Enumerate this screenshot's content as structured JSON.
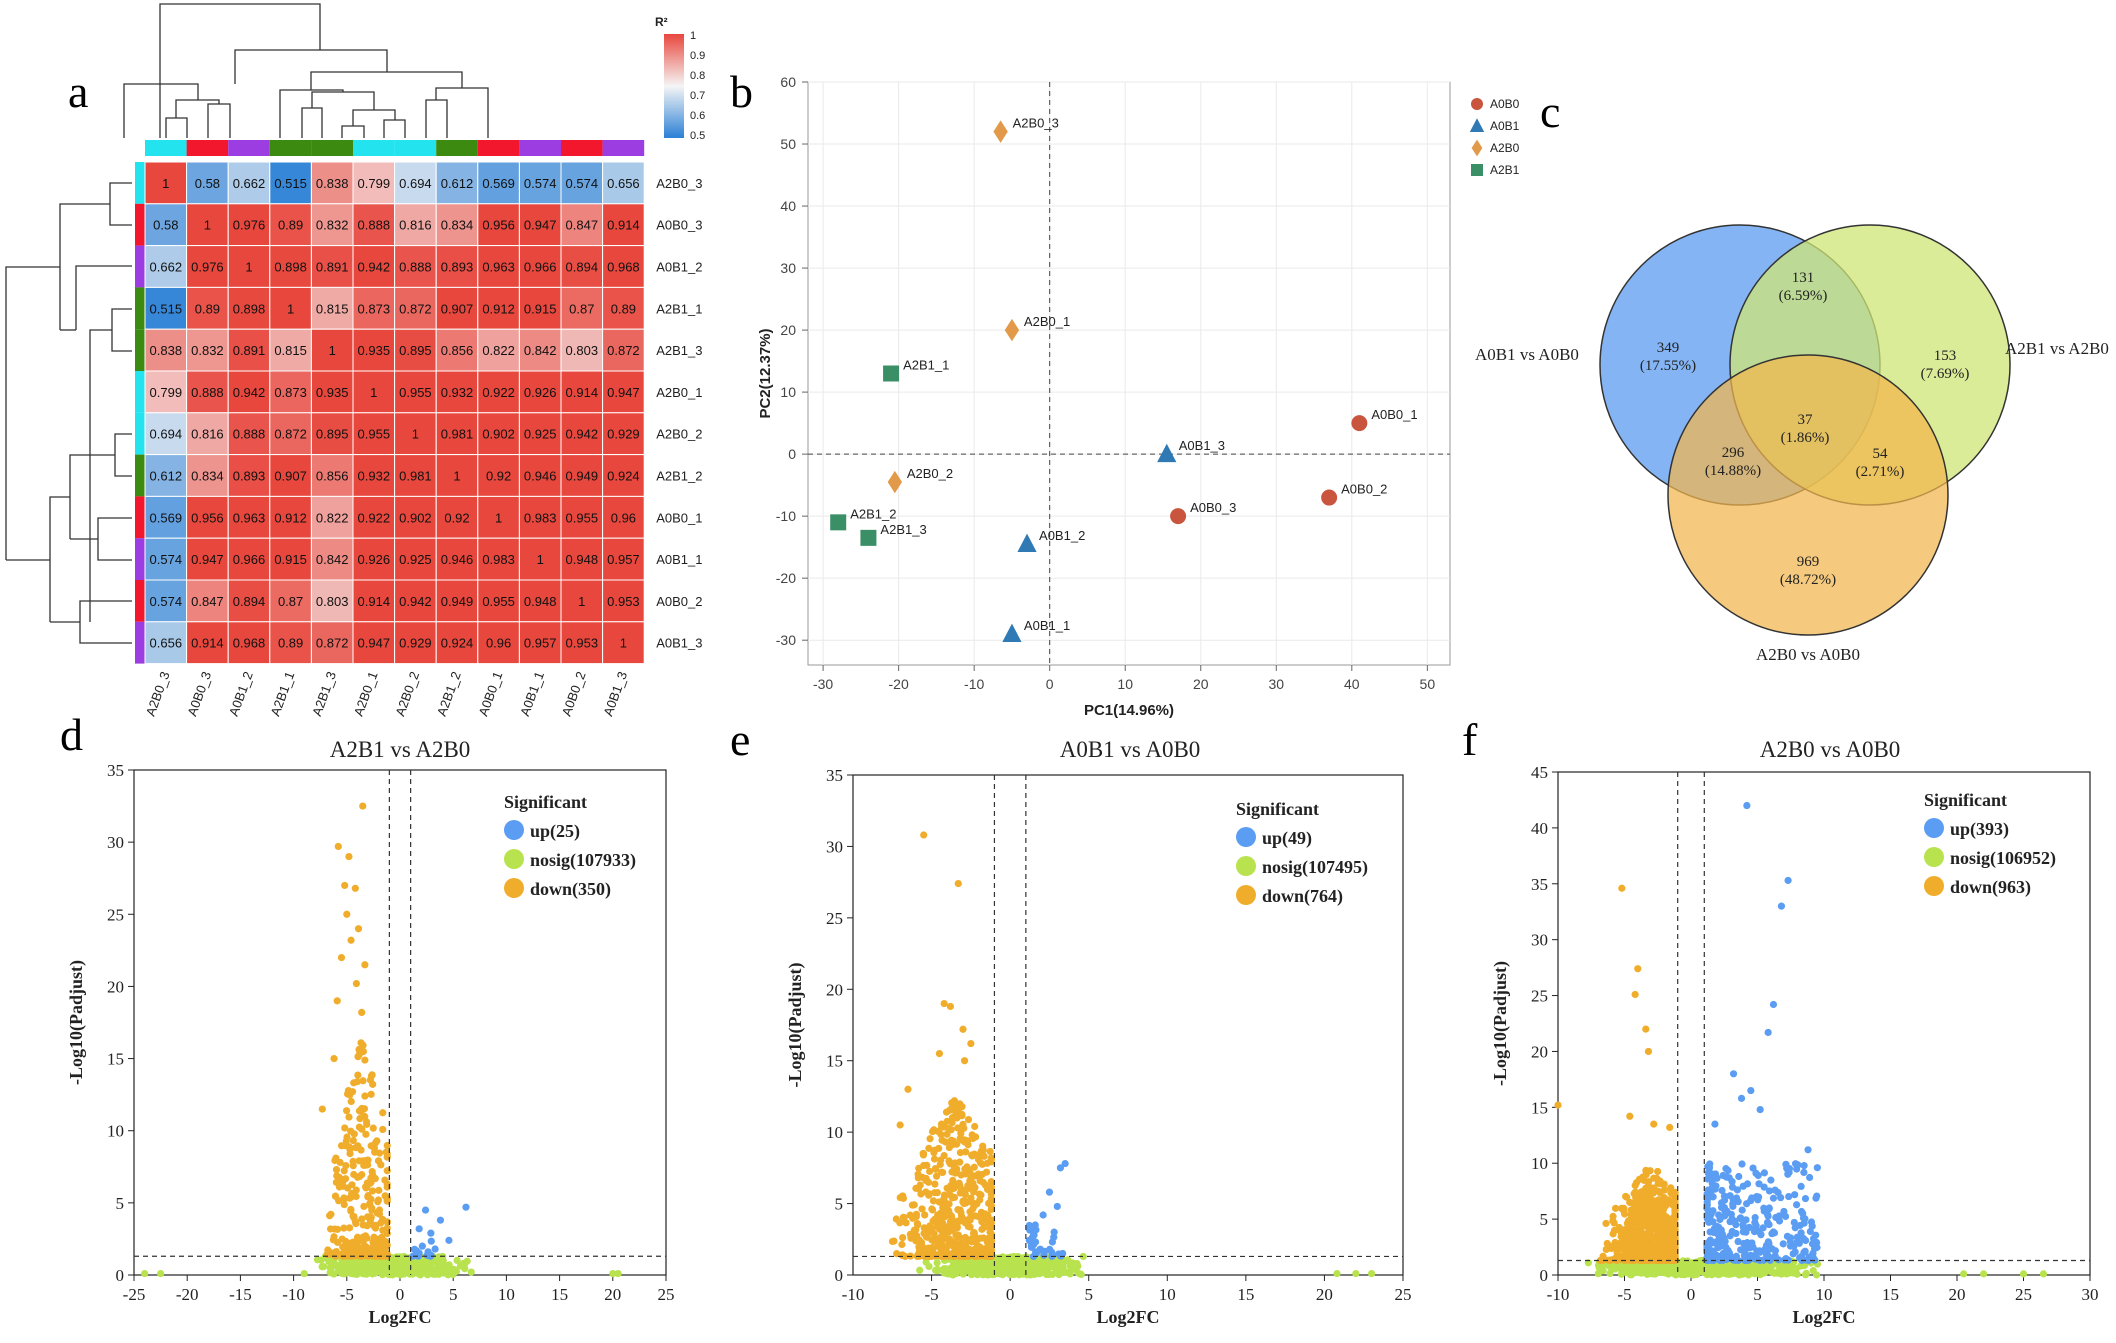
{
  "panel_letters": {
    "a": "a",
    "b": "b",
    "c": "c",
    "d": "d",
    "e": "e",
    "f": "f"
  },
  "colors": {
    "cyan": "#23e3ef",
    "red": "#f2172c",
    "purple": "#9b3de0",
    "green": "#3c8a10",
    "heat_low": "#2b80d6",
    "heat_mid": "#f5f5f5",
    "heat_high": "#e8473d",
    "up": "#5b9df2",
    "nosig": "#b8e34e",
    "down": "#f0ad2c",
    "pca_A0B0": "#c9553e",
    "pca_A0B1": "#2f79b5",
    "pca_A2B0": "#e29a4a",
    "pca_A2B1": "#3b8f66",
    "venn_blue": "#6ea7f2",
    "venn_green": "#cfe676",
    "venn_orange": "#f2b54c"
  },
  "chart_data": [
    {
      "id": "a",
      "type": "heatmap",
      "title": "",
      "legend_title": "R²",
      "legend_ticks": [
        "1",
        "0.9",
        "0.8",
        "0.7",
        "0.6",
        "0.5"
      ],
      "legend_range": [
        0.5,
        1
      ],
      "col_labels": [
        "A2B0_3",
        "A0B0_3",
        "A0B1_2",
        "A2B1_1",
        "A2B1_3",
        "A2B0_1",
        "A2B0_2",
        "A2B1_2",
        "A0B0_1",
        "A0B1_1",
        "A0B0_2",
        "A0B1_3"
      ],
      "row_labels": [
        "A2B0_3",
        "A0B0_3",
        "A0B1_2",
        "A2B1_1",
        "A2B1_3",
        "A2B0_1",
        "A2B0_2",
        "A2B1_2",
        "A0B0_1",
        "A0B1_1",
        "A0B0_2",
        "A0B1_3"
      ],
      "group_colors": [
        "cyan",
        "red",
        "purple",
        "green",
        "green",
        "cyan",
        "cyan",
        "green",
        "red",
        "purple",
        "red",
        "purple"
      ],
      "values": [
        [
          "1",
          "0.58",
          "0.662",
          "0.515",
          "0.838",
          "0.799",
          "0.694",
          "0.612",
          "0.569",
          "0.574",
          "0.574",
          "0.656"
        ],
        [
          "0.58",
          "1",
          "0.976",
          "0.89",
          "0.832",
          "0.888",
          "0.816",
          "0.834",
          "0.956",
          "0.947",
          "0.847",
          "0.914"
        ],
        [
          "0.662",
          "0.976",
          "1",
          "0.898",
          "0.891",
          "0.942",
          "0.888",
          "0.893",
          "0.963",
          "0.966",
          "0.894",
          "0.968"
        ],
        [
          "0.515",
          "0.89",
          "0.898",
          "1",
          "0.815",
          "0.873",
          "0.872",
          "0.907",
          "0.912",
          "0.915",
          "0.87",
          "0.89"
        ],
        [
          "0.838",
          "0.832",
          "0.891",
          "0.815",
          "1",
          "0.935",
          "0.895",
          "0.856",
          "0.822",
          "0.842",
          "0.803",
          "0.872"
        ],
        [
          "0.799",
          "0.888",
          "0.942",
          "0.873",
          "0.935",
          "1",
          "0.955",
          "0.932",
          "0.922",
          "0.926",
          "0.914",
          "0.947"
        ],
        [
          "0.694",
          "0.816",
          "0.888",
          "0.872",
          "0.895",
          "0.955",
          "1",
          "0.981",
          "0.902",
          "0.925",
          "0.942",
          "0.929"
        ],
        [
          "0.612",
          "0.834",
          "0.893",
          "0.907",
          "0.856",
          "0.932",
          "0.981",
          "1",
          "0.92",
          "0.946",
          "0.949",
          "0.924"
        ],
        [
          "0.569",
          "0.956",
          "0.963",
          "0.912",
          "0.822",
          "0.922",
          "0.902",
          "0.92",
          "1",
          "0.983",
          "0.955",
          "0.96"
        ],
        [
          "0.574",
          "0.947",
          "0.966",
          "0.915",
          "0.842",
          "0.926",
          "0.925",
          "0.946",
          "0.983",
          "1",
          "0.948",
          "0.957"
        ],
        [
          "0.574",
          "0.847",
          "0.894",
          "0.87",
          "0.803",
          "0.914",
          "0.942",
          "0.949",
          "0.955",
          "0.948",
          "1",
          "0.953"
        ],
        [
          "0.656",
          "0.914",
          "0.968",
          "0.89",
          "0.872",
          "0.947",
          "0.929",
          "0.924",
          "0.96",
          "0.957",
          "0.953",
          "1"
        ]
      ]
    },
    {
      "id": "b",
      "type": "scatter",
      "title": "",
      "xlabel": "PC1(14.96%)",
      "ylabel": "PC2(12.37%)",
      "xlim": [
        -32,
        53
      ],
      "ylim": [
        -34,
        60
      ],
      "xticks": [
        -30,
        -20,
        -10,
        0,
        10,
        20,
        30,
        40,
        50
      ],
      "yticks": [
        -30,
        -20,
        -10,
        0,
        10,
        20,
        30,
        40,
        50,
        60
      ],
      "legend": [
        {
          "name": "A0B0",
          "shape": "circle",
          "color": "pca_A0B0"
        },
        {
          "name": "A0B1",
          "shape": "triangle",
          "color": "pca_A0B1"
        },
        {
          "name": "A2B0",
          "shape": "diamond",
          "color": "pca_A2B0"
        },
        {
          "name": "A2B1",
          "shape": "square",
          "color": "pca_A2B1"
        }
      ],
      "points": [
        {
          "label": "A2B0_3",
          "group": "A2B0",
          "x": -6.5,
          "y": 52
        },
        {
          "label": "A2B0_1",
          "group": "A2B0",
          "x": -5,
          "y": 20
        },
        {
          "label": "A2B1_1",
          "group": "A2B1",
          "x": -21,
          "y": 13
        },
        {
          "label": "A0B0_1",
          "group": "A0B0",
          "x": 41,
          "y": 5
        },
        {
          "label": "A0B1_3",
          "group": "A0B1",
          "x": 15.5,
          "y": 0
        },
        {
          "label": "A2B0_2",
          "group": "A2B0",
          "x": -20.5,
          "y": -4.5
        },
        {
          "label": "A0B0_2",
          "group": "A0B0",
          "x": 37,
          "y": -7
        },
        {
          "label": "A0B0_3",
          "group": "A0B0",
          "x": 17,
          "y": -10
        },
        {
          "label": "A2B1_2",
          "group": "A2B1",
          "x": -28,
          "y": -11
        },
        {
          "label": "A2B1_3",
          "group": "A2B1",
          "x": -24,
          "y": -13.5
        },
        {
          "label": "A0B1_2",
          "group": "A0B1",
          "x": -3,
          "y": -14.5
        },
        {
          "label": "A0B1_1",
          "group": "A0B1",
          "x": -5,
          "y": -29
        }
      ]
    },
    {
      "id": "c",
      "type": "venn",
      "sets": [
        "A0B1 vs A0B0",
        "A2B1 vs A2B0",
        "A2B0 vs A0B0"
      ],
      "regions": [
        {
          "sets": [
            "A0B1 vs A0B0"
          ],
          "count": "349",
          "pct": "(17.55%)"
        },
        {
          "sets": [
            "A2B1 vs A2B0"
          ],
          "count": "153",
          "pct": "(7.69%)"
        },
        {
          "sets": [
            "A2B0 vs A0B0"
          ],
          "count": "969",
          "pct": "(48.72%)"
        },
        {
          "sets": [
            "A0B1 vs A0B0",
            "A2B1 vs A2B0"
          ],
          "count": "131",
          "pct": "(6.59%)"
        },
        {
          "sets": [
            "A0B1 vs A0B0",
            "A2B0 vs A0B0"
          ],
          "count": "296",
          "pct": "(14.88%)"
        },
        {
          "sets": [
            "A2B1 vs A2B0",
            "A2B0 vs A0B0"
          ],
          "count": "54",
          "pct": "(2.71%)"
        },
        {
          "sets": [
            "A0B1 vs A0B0",
            "A2B1 vs A2B0",
            "A2B0 vs A0B0"
          ],
          "count": "37",
          "pct": "(1.86%)"
        }
      ]
    },
    {
      "id": "d",
      "type": "scatter",
      "title": "A2B1 vs A2B0",
      "xlabel": "Log2FC",
      "ylabel": "-Log10(Padjust)",
      "xlim": [
        -25,
        25
      ],
      "ylim": [
        0,
        35
      ],
      "xticks": [
        -25,
        -20,
        -15,
        -10,
        -5,
        0,
        5,
        10,
        15,
        20,
        25
      ],
      "yticks": [
        0,
        5,
        10,
        15,
        20,
        25,
        30,
        35
      ],
      "vlines": [
        -1,
        1
      ],
      "hline": 1.3,
      "legend_title": "Significant",
      "legend": [
        {
          "name": "up(25)",
          "color": "up"
        },
        {
          "name": "nosig(107933)",
          "color": "nosig"
        },
        {
          "name": "down(350)",
          "color": "down"
        }
      ],
      "outliers_up": [
        [
          6.2,
          4.7
        ],
        [
          2.4,
          4.5
        ],
        [
          3.8,
          3.8
        ],
        [
          1.8,
          3.2
        ],
        [
          2.9,
          2.9
        ],
        [
          4.6,
          2.4
        ],
        [
          2.1,
          2.0
        ],
        [
          3.3,
          1.8
        ]
      ],
      "outliers_down": [
        [
          -3.5,
          32.5
        ],
        [
          -5.8,
          29.7
        ],
        [
          -4.8,
          29
        ],
        [
          -5.2,
          27
        ],
        [
          -4.2,
          26.8
        ],
        [
          -5,
          25
        ],
        [
          -3.9,
          24
        ],
        [
          -4.6,
          23.2
        ],
        [
          -5.5,
          22
        ],
        [
          -3.3,
          21.5
        ],
        [
          -4.1,
          20.2
        ],
        [
          -5.9,
          19
        ],
        [
          -3.6,
          18.2
        ],
        [
          -6.2,
          15
        ],
        [
          -7.3,
          11.5
        ]
      ],
      "nosig_far": [
        [
          -24,
          0.1
        ],
        [
          -22.5,
          0.1
        ],
        [
          -9,
          0.1
        ],
        [
          20,
          0.1
        ],
        [
          20.5,
          0.1
        ]
      ],
      "cluster_down": {
        "xmin": -7.5,
        "xmax": -1.2,
        "center": -3.6,
        "ymax": 17,
        "count": 300
      },
      "cluster_up": {
        "xmin": 1.2,
        "xmax": 3.5,
        "center": 2.0,
        "ymax": 2.5,
        "count": 12
      },
      "cluster_nosig": {
        "xmin": -8,
        "xmax": 7,
        "ymax": 1.3,
        "count": 450
      }
    },
    {
      "id": "e",
      "type": "scatter",
      "title": "A0B1 vs A0B0",
      "xlabel": "Log2FC",
      "ylabel": "-Log10(Padjust)",
      "xlim": [
        -10,
        25
      ],
      "ylim": [
        0,
        35
      ],
      "xticks": [
        -5,
        0,
        5,
        10,
        15,
        20,
        25
      ],
      "xtick_labels_extra": [
        "-10"
      ],
      "yticks": [
        0,
        5,
        10,
        15,
        20,
        25,
        30,
        35
      ],
      "vlines": [
        -1,
        1
      ],
      "hline": 1.3,
      "legend_title": "Significant",
      "legend": [
        {
          "name": "up(49)",
          "color": "up"
        },
        {
          "name": "nosig(107495)",
          "color": "nosig"
        },
        {
          "name": "down(764)",
          "color": "down"
        }
      ],
      "outliers_up": [
        [
          3.5,
          7.8
        ],
        [
          3.2,
          7.5
        ],
        [
          2.5,
          5.8
        ],
        [
          3,
          4.8
        ],
        [
          2.1,
          4.2
        ],
        [
          1.6,
          3.5
        ],
        [
          2.8,
          3.0
        ],
        [
          1.4,
          2.6
        ]
      ],
      "outliers_down": [
        [
          -5.5,
          30.8
        ],
        [
          -3.3,
          27.4
        ],
        [
          -4.2,
          19
        ],
        [
          -3.8,
          18.8
        ],
        [
          -3,
          17.2
        ],
        [
          -2.5,
          16.2
        ],
        [
          -4.5,
          15.5
        ],
        [
          -2.9,
          15
        ],
        [
          -6.5,
          13
        ],
        [
          -7,
          10.5
        ]
      ],
      "nosig_far": [
        [
          20.8,
          0.1
        ],
        [
          22,
          0.1
        ],
        [
          23,
          0.1
        ]
      ],
      "cluster_down": {
        "xmin": -8,
        "xmax": -1.2,
        "center": -3.5,
        "ymax": 13,
        "count": 550
      },
      "cluster_up": {
        "xmin": 1.2,
        "xmax": 3.5,
        "center": 1.9,
        "ymax": 3.5,
        "count": 30
      },
      "cluster_nosig": {
        "xmin": -6,
        "xmax": 5,
        "ymax": 1.3,
        "count": 450
      }
    },
    {
      "id": "f",
      "type": "scatter",
      "title": "A2B0 vs A0B0",
      "xlabel": "Log2FC",
      "ylabel": "-Log10(Padjust)",
      "xlim": [
        -10,
        30
      ],
      "ylim": [
        0,
        45
      ],
      "xticks": [
        -10,
        -5,
        0,
        5,
        10,
        15,
        20,
        25,
        30
      ],
      "yticks": [
        0,
        5,
        10,
        15,
        20,
        25,
        30,
        35,
        40,
        45
      ],
      "vlines": [
        -1,
        1
      ],
      "hline": 1.3,
      "legend_title": "Significant",
      "legend": [
        {
          "name": "up(393)",
          "color": "up"
        },
        {
          "name": "nosig(106952)",
          "color": "nosig"
        },
        {
          "name": "down(963)",
          "color": "down"
        }
      ],
      "outliers_up": [
        [
          4.2,
          42
        ],
        [
          7.3,
          35.3
        ],
        [
          6.8,
          33
        ],
        [
          6.2,
          24.2
        ],
        [
          5.8,
          21.7
        ],
        [
          3.2,
          18
        ],
        [
          4.5,
          16.5
        ],
        [
          3.8,
          15.8
        ],
        [
          5.2,
          14.8
        ],
        [
          1.8,
          13.5
        ],
        [
          9.5,
          9.6
        ],
        [
          8.8,
          11.2
        ]
      ],
      "outliers_down": [
        [
          -10,
          15.2
        ],
        [
          -5.2,
          34.6
        ],
        [
          -4,
          27.4
        ],
        [
          -4.2,
          25.1
        ],
        [
          -3.4,
          22
        ],
        [
          -3.2,
          20
        ],
        [
          -4.6,
          14.2
        ],
        [
          -2.8,
          13.5
        ],
        [
          -1.6,
          13.2
        ]
      ],
      "nosig_far": [
        [
          20.5,
          0.1
        ],
        [
          22,
          0.1
        ],
        [
          25,
          0.1
        ],
        [
          26.5,
          0.1
        ]
      ],
      "cluster_down": {
        "xmin": -8,
        "xmax": -1.2,
        "center": -3,
        "ymax": 10,
        "count": 600
      },
      "cluster_up": {
        "xmin": 1.2,
        "xmax": 9.5,
        "center": 3.5,
        "ymax": 10,
        "count": 330
      },
      "cluster_nosig": {
        "xmin": -8,
        "xmax": 10,
        "ymax": 1.3,
        "count": 500
      }
    }
  ]
}
